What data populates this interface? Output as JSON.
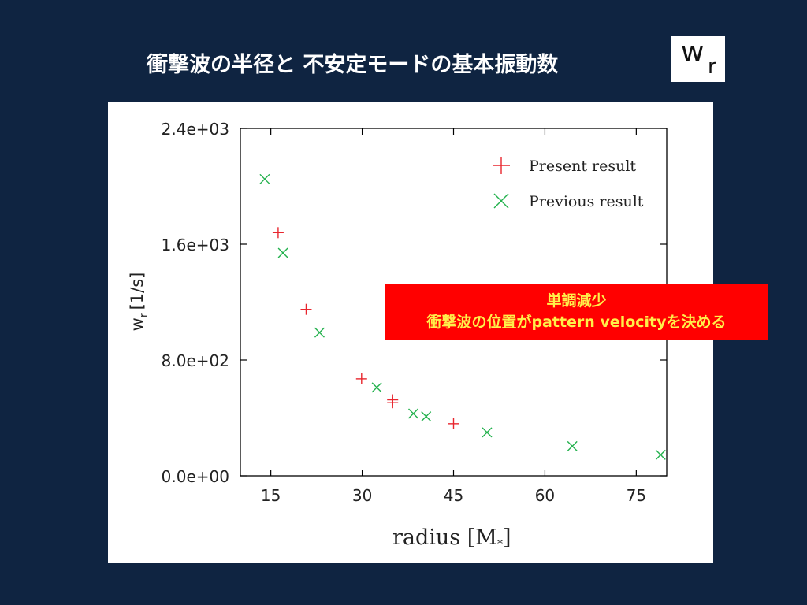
{
  "slide": {
    "title": "衝撃波の半径と 不安定モードの基本振動数",
    "badge": {
      "main": "w",
      "sub": "r"
    }
  },
  "callout": {
    "line1": "単調減少",
    "line2": "衝撃波の位置がpattern velocityを決める"
  },
  "colors": {
    "background": "#0f2441",
    "present": "#e8262e",
    "previous": "#23b14d",
    "callout_bg": "#ff0000",
    "callout_text": "#ffef4a"
  },
  "chart_data": {
    "type": "scatter",
    "xlabel": "radius [M*]",
    "ylabel": "wr [1/s]",
    "ylabel_main": "w",
    "ylabel_sub": "r",
    "ylabel_unit": "[1/s]",
    "xlabel_main": "radius [M",
    "xlabel_sub": "*",
    "xlabel_end": "]",
    "xlim": [
      10,
      80
    ],
    "ylim": [
      0,
      2400
    ],
    "x_ticks": [
      15,
      30,
      45,
      60,
      75
    ],
    "y_ticks": [
      0,
      800,
      1600,
      2400
    ],
    "y_tick_labels": [
      "0.0e+00",
      "8.0e+02",
      "1.6e+03",
      "2.4e+03"
    ],
    "grid": false,
    "legend": "top-right",
    "series": [
      {
        "name": "Present result",
        "marker": "plus",
        "points": [
          [
            16.2,
            1680
          ],
          [
            20.8,
            1150
          ],
          [
            29.9,
            670
          ],
          [
            35.0,
            525
          ],
          [
            35.0,
            505
          ],
          [
            45.0,
            360
          ]
        ]
      },
      {
        "name": "Previous result",
        "marker": "cross",
        "points": [
          [
            14.0,
            2050
          ],
          [
            17.0,
            1540
          ],
          [
            23.0,
            990
          ],
          [
            32.4,
            610
          ],
          [
            38.4,
            430
          ],
          [
            40.5,
            410
          ],
          [
            50.5,
            300
          ],
          [
            64.5,
            205
          ],
          [
            79.0,
            145
          ]
        ]
      }
    ]
  }
}
